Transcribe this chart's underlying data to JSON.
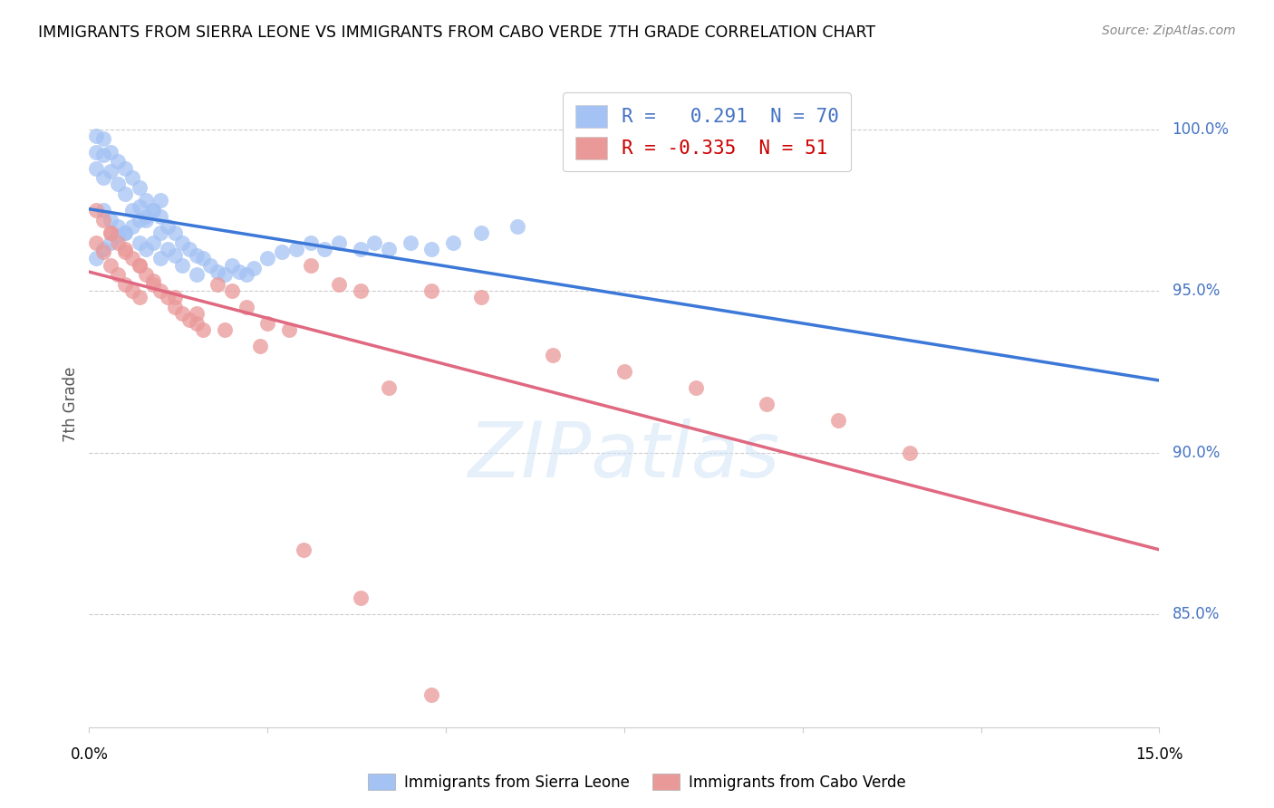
{
  "title": "IMMIGRANTS FROM SIERRA LEONE VS IMMIGRANTS FROM CABO VERDE 7TH GRADE CORRELATION CHART",
  "source": "Source: ZipAtlas.com",
  "ylabel": "7th Grade",
  "ytick_labels": [
    "100.0%",
    "95.0%",
    "90.0%",
    "85.0%"
  ],
  "ytick_values": [
    1.0,
    0.95,
    0.9,
    0.85
  ],
  "xlim": [
    0.0,
    0.15
  ],
  "ylim": [
    0.815,
    1.015
  ],
  "sierra_leone_R": 0.291,
  "cabo_verde_R": -0.335,
  "sierra_leone_N": 70,
  "cabo_verde_N": 51,
  "sierra_leone_color": "#a4c2f4",
  "cabo_verde_color": "#ea9999",
  "trend_blue": "#3c78d8",
  "trend_pink": "#e06880",
  "watermark": "ZIPatlas",
  "sierra_leone_x": [
    0.001,
    0.001,
    0.001,
    0.002,
    0.002,
    0.002,
    0.002,
    0.003,
    0.003,
    0.003,
    0.004,
    0.004,
    0.004,
    0.005,
    0.005,
    0.005,
    0.006,
    0.006,
    0.007,
    0.007,
    0.007,
    0.008,
    0.008,
    0.008,
    0.009,
    0.009,
    0.01,
    0.01,
    0.01,
    0.011,
    0.011,
    0.012,
    0.012,
    0.013,
    0.013,
    0.014,
    0.015,
    0.015,
    0.016,
    0.017,
    0.018,
    0.019,
    0.02,
    0.021,
    0.022,
    0.023,
    0.025,
    0.027,
    0.029,
    0.031,
    0.033,
    0.035,
    0.038,
    0.04,
    0.042,
    0.045,
    0.048,
    0.051,
    0.055,
    0.06,
    0.001,
    0.002,
    0.003,
    0.004,
    0.005,
    0.006,
    0.007,
    0.008,
    0.009,
    0.01
  ],
  "sierra_leone_y": [
    0.998,
    0.993,
    0.988,
    0.997,
    0.992,
    0.985,
    0.975,
    0.993,
    0.987,
    0.972,
    0.99,
    0.983,
    0.97,
    0.988,
    0.98,
    0.968,
    0.985,
    0.975,
    0.982,
    0.976,
    0.965,
    0.978,
    0.972,
    0.963,
    0.975,
    0.965,
    0.973,
    0.968,
    0.96,
    0.97,
    0.963,
    0.968,
    0.961,
    0.965,
    0.958,
    0.963,
    0.961,
    0.955,
    0.96,
    0.958,
    0.956,
    0.955,
    0.958,
    0.956,
    0.955,
    0.957,
    0.96,
    0.962,
    0.963,
    0.965,
    0.963,
    0.965,
    0.963,
    0.965,
    0.963,
    0.965,
    0.963,
    0.965,
    0.968,
    0.97,
    0.96,
    0.963,
    0.965,
    0.967,
    0.968,
    0.97,
    0.972,
    0.973,
    0.975,
    0.978
  ],
  "cabo_verde_x": [
    0.001,
    0.001,
    0.002,
    0.002,
    0.003,
    0.003,
    0.004,
    0.004,
    0.005,
    0.005,
    0.006,
    0.006,
    0.007,
    0.007,
    0.008,
    0.009,
    0.01,
    0.011,
    0.012,
    0.013,
    0.014,
    0.015,
    0.016,
    0.018,
    0.02,
    0.022,
    0.025,
    0.028,
    0.031,
    0.035,
    0.038,
    0.042,
    0.048,
    0.055,
    0.065,
    0.075,
    0.085,
    0.095,
    0.105,
    0.115,
    0.003,
    0.005,
    0.007,
    0.009,
    0.012,
    0.015,
    0.019,
    0.024,
    0.03,
    0.038,
    0.048
  ],
  "cabo_verde_y": [
    0.975,
    0.965,
    0.972,
    0.962,
    0.968,
    0.958,
    0.965,
    0.955,
    0.962,
    0.952,
    0.96,
    0.95,
    0.958,
    0.948,
    0.955,
    0.952,
    0.95,
    0.948,
    0.945,
    0.943,
    0.941,
    0.94,
    0.938,
    0.952,
    0.95,
    0.945,
    0.94,
    0.938,
    0.958,
    0.952,
    0.95,
    0.92,
    0.95,
    0.948,
    0.93,
    0.925,
    0.92,
    0.915,
    0.91,
    0.9,
    0.968,
    0.963,
    0.958,
    0.953,
    0.948,
    0.943,
    0.938,
    0.933,
    0.87,
    0.855,
    0.825
  ]
}
